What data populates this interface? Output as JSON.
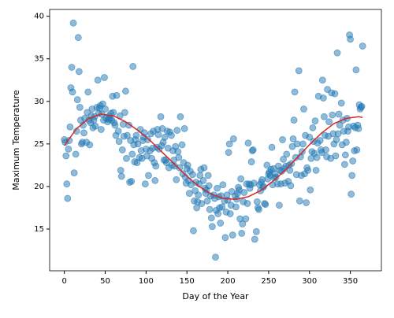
{
  "chart_data": {
    "type": "scatter",
    "xlabel": "Day of the Year",
    "ylabel": "Maximum Temperature",
    "xlim": [
      -18,
      388
    ],
    "ylim": [
      10.1,
      40.8
    ],
    "xticks": [
      0,
      50,
      100,
      150,
      200,
      250,
      300,
      350
    ],
    "yticks": [
      15,
      20,
      25,
      30,
      35,
      40
    ],
    "color": "#1f77b4",
    "x": [
      0,
      1,
      2,
      3,
      4,
      5,
      6,
      7,
      8,
      9,
      10,
      11,
      12,
      14,
      15,
      16,
      17,
      18,
      19,
      20,
      21,
      22,
      23,
      24,
      25,
      27,
      28,
      29,
      30,
      31,
      32,
      33,
      34,
      35,
      36,
      37,
      38,
      40,
      41,
      42,
      43,
      44,
      45,
      46,
      47,
      48,
      49,
      50,
      51,
      53,
      54,
      55,
      56,
      57,
      58,
      59,
      60,
      61,
      62,
      63,
      64,
      66,
      67,
      68,
      69,
      70,
      71,
      72,
      73,
      74,
      75,
      76,
      77,
      79,
      80,
      81,
      82,
      83,
      84,
      85,
      86,
      87,
      88,
      89,
      90,
      92,
      93,
      94,
      95,
      96,
      97,
      98,
      99,
      100,
      101,
      102,
      103,
      105,
      106,
      107,
      108,
      109,
      110,
      111,
      112,
      113,
      114,
      115,
      116,
      118,
      119,
      120,
      121,
      122,
      123,
      124,
      125,
      126,
      127,
      128,
      129,
      131,
      132,
      133,
      134,
      135,
      136,
      137,
      138,
      139,
      140,
      141,
      142,
      144,
      145,
      146,
      147,
      148,
      149,
      150,
      151,
      152,
      153,
      154,
      155,
      157,
      158,
      159,
      160,
      161,
      162,
      163,
      164,
      165,
      166,
      167,
      168,
      170,
      171,
      172,
      173,
      174,
      175,
      176,
      177,
      178,
      179,
      180,
      181,
      183,
      184,
      185,
      186,
      187,
      188,
      189,
      190,
      191,
      192,
      193,
      194,
      196,
      197,
      198,
      199,
      200,
      201,
      202,
      203,
      204,
      205,
      206,
      207,
      209,
      210,
      211,
      212,
      213,
      214,
      215,
      216,
      217,
      218,
      219,
      220,
      222,
      223,
      224,
      225,
      226,
      227,
      228,
      229,
      230,
      231,
      232,
      233,
      235,
      236,
      237,
      238,
      239,
      240,
      241,
      242,
      243,
      244,
      245,
      246,
      248,
      249,
      250,
      251,
      252,
      253,
      254,
      255,
      256,
      257,
      258,
      259,
      261,
      262,
      263,
      264,
      265,
      266,
      267,
      268,
      269,
      270,
      271,
      272,
      274,
      275,
      276,
      277,
      278,
      279,
      280,
      281,
      282,
      283,
      284,
      285,
      287,
      288,
      289,
      290,
      291,
      292,
      293,
      294,
      295,
      296,
      297,
      298,
      300,
      301,
      302,
      303,
      304,
      305,
      306,
      307,
      308,
      309,
      310,
      311,
      313,
      314,
      315,
      316,
      317,
      318,
      319,
      320,
      321,
      322,
      323,
      324,
      326,
      327,
      328,
      329,
      330,
      331,
      332,
      333,
      334,
      335,
      336,
      337,
      339,
      340,
      341,
      342,
      343,
      344,
      345,
      346,
      347,
      348,
      349,
      350,
      351,
      352,
      353,
      354,
      355,
      356,
      357,
      358,
      359,
      360,
      361,
      362,
      363,
      364,
      365
    ],
    "values": [
      25.5,
      25.2,
      23.6,
      20.3,
      18.6,
      24.4,
      25.4,
      27.0,
      31.6,
      34.0,
      31.1,
      39.2,
      21.6,
      23.8,
      26.5,
      30.2,
      37.5,
      33.5,
      29.3,
      27.8,
      25.0,
      25.2,
      27.2,
      26.3,
      28.0,
      25.2,
      28.7,
      31.1,
      27.8,
      24.9,
      27.5,
      28.3,
      29.1,
      26.9,
      27.8,
      28.2,
      27.1,
      29.3,
      32.5,
      28.6,
      29.2,
      29.5,
      26.7,
      28.5,
      29.7,
      27.8,
      32.8,
      29.1,
      28.0,
      27.6,
      27.9,
      28.3,
      28.0,
      28.6,
      27.8,
      30.6,
      28.7,
      27.5,
      27.2,
      26.0,
      30.7,
      26.5,
      25.3,
      28.3,
      21.9,
      21.2,
      24.3,
      27.3,
      25.9,
      28.7,
      31.2,
      23.3,
      26.0,
      27.2,
      20.5,
      25.4,
      20.6,
      23.8,
      34.1,
      24.9,
      22.9,
      25.5,
      26.0,
      22.8,
      25.0,
      23.4,
      26.7,
      24.2,
      23.3,
      25.4,
      25.8,
      26.3,
      20.3,
      24.4,
      23.6,
      25.5,
      21.3,
      24.2,
      26.2,
      23.3,
      24.5,
      26.5,
      22.8,
      20.7,
      22.4,
      24.6,
      26.7,
      26.1,
      24.4,
      28.2,
      24.8,
      26.8,
      25.2,
      23.1,
      25.8,
      23.1,
      22.8,
      26.5,
      24.5,
      22.2,
      26.4,
      26.0,
      22.5,
      24.2,
      23.1,
      22.4,
      24.7,
      20.8,
      26.6,
      24.1,
      23.4,
      22.2,
      28.2,
      24.9,
      21.5,
      22.8,
      26.8,
      21.1,
      20.4,
      22.1,
      22.5,
      20.7,
      19.2,
      21.8,
      20.2,
      21.4,
      14.8,
      18.3,
      19.5,
      20.5,
      17.5,
      18.2,
      19.0,
      20.3,
      21.3,
      22.0,
      18.0,
      20.7,
      22.2,
      19.8,
      19.2,
      19.6,
      18.3,
      21.3,
      20.1,
      17.3,
      18.9,
      16.3,
      15.3,
      19.0,
      18.6,
      11.7,
      17.2,
      19.8,
      16.8,
      18.8,
      17.5,
      15.7,
      18.9,
      17.6,
      20.2,
      18.3,
      14.0,
      17.0,
      19.0,
      18.4,
      24.0,
      25.0,
      16.8,
      17.8,
      19.4,
      14.3,
      25.6,
      18.9,
      17.6,
      18.5,
      19.2,
      19.9,
      19.6,
      16.2,
      20.9,
      14.5,
      15.6,
      18.2,
      19.3,
      16.2,
      20.3,
      18.0,
      25.1,
      20.3,
      19.8,
      20.2,
      22.9,
      24.2,
      24.3,
      20.4,
      13.8,
      14.7,
      18.2,
      17.5,
      17.3,
      20.2,
      19.5,
      20.5,
      20.8,
      19.9,
      20.0,
      18.0,
      17.9,
      22.5,
      20.9,
      21.5,
      21.7,
      21.3,
      22.0,
      24.6,
      20.2,
      22.1,
      21.0,
      21.5,
      21.1,
      20.3,
      22.4,
      17.8,
      21.9,
      20.3,
      21.8,
      25.5,
      23.2,
      22.1,
      20.4,
      22.4,
      23.8,
      20.6,
      22.5,
      21.9,
      20.1,
      22.7,
      24.7,
      25.6,
      27.8,
      31.1,
      23.4,
      21.4,
      25.0,
      33.6,
      18.3,
      23.5,
      21.3,
      24.1,
      25.0,
      29.1,
      21.5,
      26.0,
      18.1,
      22.2,
      21.9,
      25.8,
      19.6,
      23.3,
      24.1,
      26.9,
      25.3,
      23.9,
      27.7,
      21.9,
      23.4,
      25.1,
      30.6,
      25.4,
      24.3,
      24.0,
      32.5,
      30.4,
      28.2,
      26.0,
      24.3,
      23.5,
      31.4,
      25.9,
      27.6,
      23.3,
      31.0,
      28.4,
      26.2,
      25.0,
      30.9,
      23.6,
      25.5,
      35.7,
      26.2,
      28.5,
      27.2,
      29.8,
      24.9,
      27.8,
      26.5,
      22.6,
      23.7,
      25.2,
      28.0,
      26.5,
      27.0,
      37.8,
      37.3,
      19.1,
      21.3,
      23.0,
      27.1,
      24.2,
      26.9,
      33.7,
      24.3,
      27.2,
      26.8,
      29.6,
      29.1,
      29.3,
      29.4,
      36.5
    ],
    "fit": {
      "color": "#d62728",
      "x": [
        0,
        15,
        30,
        45,
        60,
        75,
        90,
        105,
        120,
        135,
        150,
        165,
        180,
        195,
        210,
        225,
        240,
        255,
        270,
        285,
        300,
        315,
        330,
        345,
        360,
        365
      ],
      "values": [
        24.8,
        26.8,
        28.0,
        28.5,
        28.3,
        27.6,
        26.6,
        25.4,
        24.0,
        22.6,
        21.2,
        20.0,
        19.1,
        18.6,
        18.5,
        18.8,
        19.5,
        20.6,
        21.9,
        23.4,
        24.9,
        26.3,
        27.4,
        28.0,
        28.2,
        28.1
      ]
    }
  }
}
